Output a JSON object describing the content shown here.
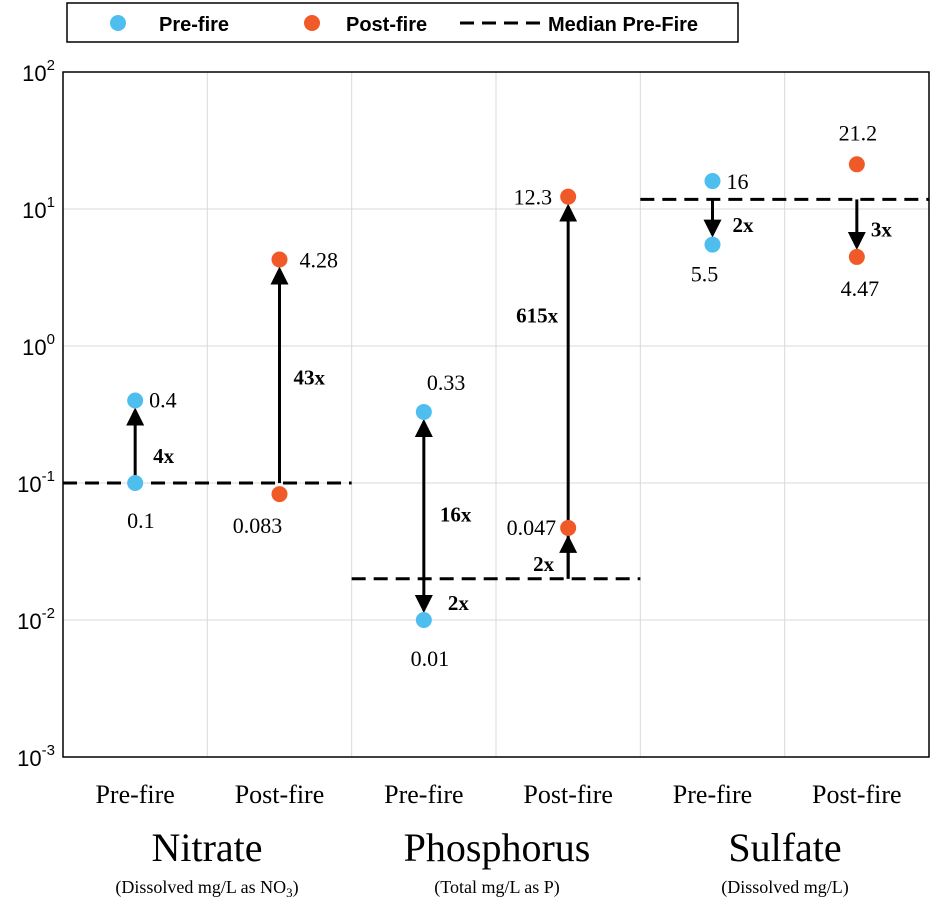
{
  "chart_data": {
    "type": "scatter",
    "yscale": "log",
    "ylim": [
      0.001,
      100
    ],
    "y_ticks": [
      {
        "base": "10",
        "exp": "-3",
        "value": 0.001
      },
      {
        "base": "10",
        "exp": "-2",
        "value": 0.01
      },
      {
        "base": "10",
        "exp": "-1",
        "value": 0.1
      },
      {
        "base": "10",
        "exp": "0",
        "value": 1
      },
      {
        "base": "10",
        "exp": "1",
        "value": 10
      },
      {
        "base": "10",
        "exp": "2",
        "value": 100
      }
    ],
    "categories": [
      "Pre-fire",
      "Post-fire",
      "Pre-fire",
      "Post-fire",
      "Pre-fire",
      "Post-fire"
    ],
    "groups": [
      {
        "title": "Nitrate",
        "subtitle_prefix": "(Dissolved mg/L as NO",
        "subtitle_sub": "3",
        "subtitle_suffix": ")"
      },
      {
        "title": "Phosphorus",
        "subtitle": "(Total mg/L as P)"
      },
      {
        "title": "Sulfate",
        "subtitle": "(Dissolved mg/L)"
      }
    ],
    "legend": {
      "position": "top-left",
      "pre_label": "Pre-fire",
      "post_label": "Post-fire",
      "median_label": "Median Pre-Fire",
      "pre_color": "#4DBEEE",
      "post_color": "#F05A28"
    },
    "series": [
      {
        "name": "Pre-fire",
        "color": "#4DBEEE",
        "points": [
          {
            "x": 1,
            "y": 0.4,
            "label": "0.4"
          },
          {
            "x": 1,
            "y": 0.1,
            "label": "0.1"
          },
          {
            "x": 3,
            "y": 0.33,
            "label": "0.33"
          },
          {
            "x": 3,
            "y": 0.01,
            "label": "0.01"
          },
          {
            "x": 5,
            "y": 16,
            "label": "16"
          },
          {
            "x": 5,
            "y": 5.5,
            "label": "5.5"
          }
        ]
      },
      {
        "name": "Post-fire",
        "color": "#F05A28",
        "points": [
          {
            "x": 2,
            "y": 4.28,
            "label": "4.28"
          },
          {
            "x": 2,
            "y": 0.083,
            "label": "0.083"
          },
          {
            "x": 4,
            "y": 12.3,
            "label": "12.3"
          },
          {
            "x": 4,
            "y": 0.047,
            "label": "0.047"
          },
          {
            "x": 6,
            "y": 21.2,
            "label": "21.2"
          },
          {
            "x": 6,
            "y": 4.47,
            "label": "4.47"
          }
        ]
      }
    ],
    "medians": [
      {
        "name": "Nitrate",
        "value": 0.1,
        "x_start": 0.5,
        "x_end": 2.5
      },
      {
        "name": "Phosphorus",
        "value": 0.02,
        "x_start": 2.5,
        "x_end": 4.5
      },
      {
        "name": "Sulfate",
        "value": 11.75,
        "x_start": 4.5,
        "x_end": 6.5
      }
    ],
    "arrows": [
      {
        "x": 1,
        "from": 0.1,
        "to": 0.4,
        "label": "4x"
      },
      {
        "x": 2,
        "from": 0.1,
        "to": 4.28,
        "label": "43x"
      },
      {
        "x": 3,
        "from": 0.02,
        "to": 0.33,
        "label": "16x"
      },
      {
        "x": 3,
        "from": 0.02,
        "to": 0.01,
        "label": "2x"
      },
      {
        "x": 4,
        "from": 0.02,
        "to": 12.3,
        "label": "615x"
      },
      {
        "x": 4,
        "from": 0.02,
        "to": 0.047,
        "label": "2x"
      },
      {
        "x": 5,
        "from": 11.75,
        "to": 5.5,
        "label": "2x"
      },
      {
        "x": 6,
        "from": 11.75,
        "to": 4.47,
        "label": "3x"
      }
    ]
  }
}
